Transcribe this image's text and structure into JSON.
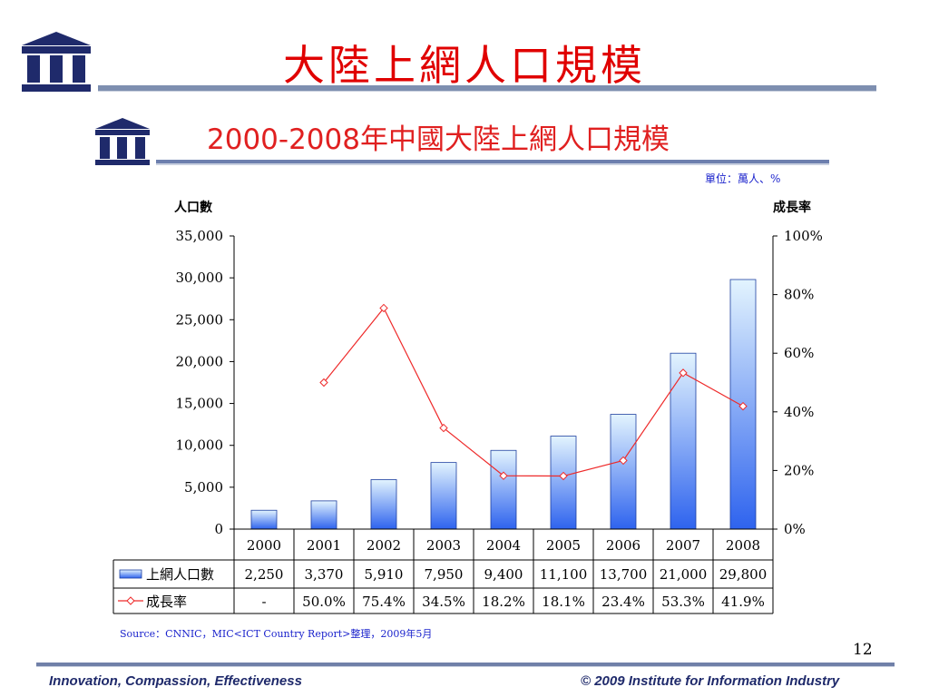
{
  "page": {
    "title": "大陸上網人口規模",
    "page_number": "12",
    "footer_left": "Innovation, Compassion, Effectiveness",
    "footer_right": "© 2009 Institute for Information Industry",
    "icons": [
      "institute-logo-icon"
    ]
  },
  "colors": {
    "title": "#e00000",
    "accent": "#1f2a6b",
    "bar_top": "#e3f4fe",
    "bar_bottom": "#2e63ee",
    "line": "#ee2a2a",
    "note": "#1a22cc"
  },
  "chart_data": {
    "type": "bar",
    "title": "2000-2008年中國大陸上網人口規模",
    "unit_note": "單位：萬人、%",
    "ylabel_left": "人口數",
    "ylabel_right": "成長率",
    "ylim_left": [
      0,
      35000
    ],
    "ylim_right": [
      0,
      100
    ],
    "yticks_left": [
      "0",
      "5,000",
      "10,000",
      "15,000",
      "20,000",
      "25,000",
      "30,000",
      "35,000"
    ],
    "yticks_right": [
      "0%",
      "20%",
      "40%",
      "60%",
      "80%",
      "100%"
    ],
    "categories": [
      "2000",
      "2001",
      "2002",
      "2003",
      "2004",
      "2005",
      "2006",
      "2007",
      "2008"
    ],
    "series": [
      {
        "name": "上網人口數",
        "type": "bar",
        "axis": "left",
        "values": [
          2250,
          3370,
          5910,
          7950,
          9400,
          11100,
          13700,
          21000,
          29800
        ],
        "labels": [
          "2,250",
          "3,370",
          "5,910",
          "7,950",
          "9,400",
          "11,100",
          "13,700",
          "21,000",
          "29,800"
        ]
      },
      {
        "name": "成長率",
        "type": "line",
        "axis": "right",
        "values": [
          null,
          50.0,
          75.4,
          34.5,
          18.2,
          18.1,
          23.4,
          53.3,
          41.9
        ],
        "labels": [
          "-",
          "50.0%",
          "75.4%",
          "34.5%",
          "18.2%",
          "18.1%",
          "23.4%",
          "53.3%",
          "41.9%"
        ]
      }
    ],
    "legend": "data-table",
    "grid": false,
    "source": "Source：CNNIC，MIC<ICT Country Report>整理，2009年5月"
  }
}
